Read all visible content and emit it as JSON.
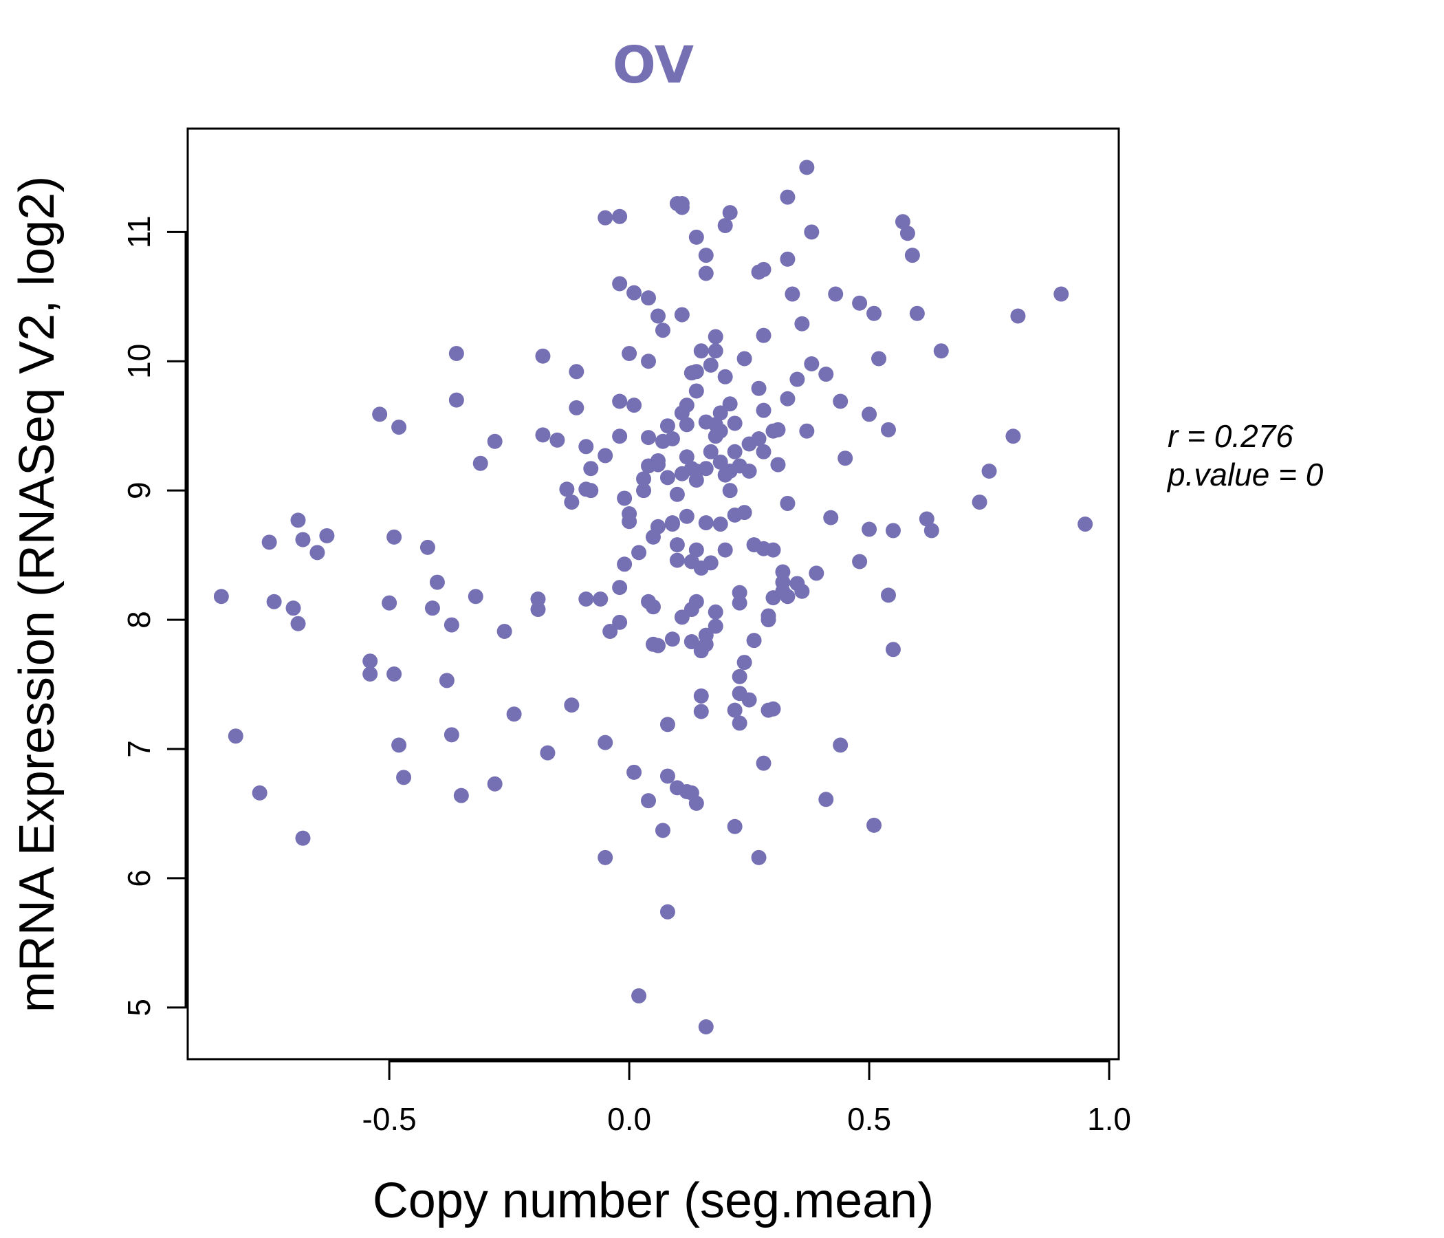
{
  "chart_data": {
    "type": "scatter",
    "title": "OV",
    "xlabel": "Copy number (seg.mean)",
    "ylabel": "mRNA Expression (RNASeq V2, log2)",
    "xlim": [
      -0.92,
      1.02
    ],
    "ylim": [
      4.6,
      11.8
    ],
    "x_ticks": [
      -0.5,
      0.0,
      0.5,
      1.0
    ],
    "x_tick_labels": [
      "-0.5",
      "0.0",
      "0.5",
      "1.0"
    ],
    "y_ticks": [
      5,
      6,
      7,
      8,
      9,
      10,
      11
    ],
    "y_tick_labels": [
      "5",
      "6",
      "7",
      "8",
      "9",
      "10",
      "11"
    ],
    "grid": false,
    "annotation": {
      "r_label": "r = 0.276",
      "p_label": "p.value = 0"
    },
    "colors": {
      "points": "#7570b3",
      "title": "#7570b3",
      "axis": "#000000"
    },
    "series": [
      {
        "name": "OV",
        "points": [
          [
            -0.85,
            8.18
          ],
          [
            -0.82,
            7.1
          ],
          [
            -0.77,
            6.66
          ],
          [
            -0.75,
            8.6
          ],
          [
            -0.74,
            8.14
          ],
          [
            -0.7,
            8.09
          ],
          [
            -0.69,
            7.97
          ],
          [
            -0.69,
            8.77
          ],
          [
            -0.68,
            8.62
          ],
          [
            -0.68,
            6.31
          ],
          [
            -0.65,
            8.52
          ],
          [
            -0.63,
            8.65
          ],
          [
            -0.54,
            7.68
          ],
          [
            -0.54,
            7.58
          ],
          [
            -0.52,
            9.59
          ],
          [
            -0.5,
            8.13
          ],
          [
            -0.49,
            7.58
          ],
          [
            -0.49,
            8.64
          ],
          [
            -0.48,
            9.49
          ],
          [
            -0.48,
            7.03
          ],
          [
            -0.47,
            6.78
          ],
          [
            -0.42,
            8.56
          ],
          [
            -0.41,
            8.09
          ],
          [
            -0.4,
            8.29
          ],
          [
            -0.38,
            7.53
          ],
          [
            -0.37,
            7.96
          ],
          [
            -0.37,
            7.11
          ],
          [
            -0.36,
            10.06
          ],
          [
            -0.36,
            9.7
          ],
          [
            -0.35,
            6.64
          ],
          [
            -0.32,
            8.18
          ],
          [
            -0.31,
            9.21
          ],
          [
            -0.28,
            9.38
          ],
          [
            -0.28,
            6.73
          ],
          [
            -0.26,
            7.91
          ],
          [
            -0.24,
            7.27
          ],
          [
            -0.19,
            8.16
          ],
          [
            -0.19,
            8.08
          ],
          [
            -0.18,
            9.43
          ],
          [
            -0.18,
            10.04
          ],
          [
            -0.17,
            6.97
          ],
          [
            -0.15,
            9.39
          ],
          [
            -0.13,
            9.01
          ],
          [
            -0.12,
            8.91
          ],
          [
            -0.12,
            7.34
          ],
          [
            -0.11,
            9.92
          ],
          [
            -0.11,
            9.64
          ],
          [
            -0.09,
            9.34
          ],
          [
            -0.09,
            9.01
          ],
          [
            -0.09,
            8.16
          ],
          [
            -0.08,
            9.0
          ],
          [
            -0.08,
            9.17
          ],
          [
            -0.06,
            8.16
          ],
          [
            -0.05,
            11.11
          ],
          [
            -0.05,
            7.05
          ],
          [
            -0.05,
            6.16
          ],
          [
            -0.05,
            9.27
          ],
          [
            -0.04,
            7.91
          ],
          [
            -0.02,
            11.12
          ],
          [
            -0.02,
            8.25
          ],
          [
            -0.02,
            9.69
          ],
          [
            -0.02,
            9.42
          ],
          [
            -0.02,
            10.6
          ],
          [
            -0.02,
            7.98
          ],
          [
            -0.01,
            8.94
          ],
          [
            -0.01,
            8.43
          ],
          [
            0.0,
            8.76
          ],
          [
            0.0,
            8.82
          ],
          [
            0.0,
            10.06
          ],
          [
            0.01,
            9.66
          ],
          [
            0.01,
            10.53
          ],
          [
            0.01,
            6.82
          ],
          [
            0.02,
            8.52
          ],
          [
            0.02,
            5.09
          ],
          [
            0.03,
            9.09
          ],
          [
            0.03,
            9.0
          ],
          [
            0.04,
            9.19
          ],
          [
            0.04,
            10.0
          ],
          [
            0.04,
            8.14
          ],
          [
            0.04,
            6.6
          ],
          [
            0.04,
            10.49
          ],
          [
            0.04,
            9.41
          ],
          [
            0.05,
            8.1
          ],
          [
            0.05,
            8.64
          ],
          [
            0.05,
            7.81
          ],
          [
            0.06,
            8.72
          ],
          [
            0.06,
            9.23
          ],
          [
            0.06,
            10.35
          ],
          [
            0.06,
            9.2
          ],
          [
            0.06,
            7.8
          ],
          [
            0.07,
            10.24
          ],
          [
            0.07,
            6.37
          ],
          [
            0.07,
            9.38
          ],
          [
            0.08,
            7.19
          ],
          [
            0.08,
            9.1
          ],
          [
            0.08,
            9.5
          ],
          [
            0.08,
            6.79
          ],
          [
            0.08,
            5.74
          ],
          [
            0.09,
            8.75
          ],
          [
            0.09,
            8.74
          ],
          [
            0.09,
            7.85
          ],
          [
            0.09,
            9.4
          ],
          [
            0.1,
            8.97
          ],
          [
            0.1,
            8.58
          ],
          [
            0.1,
            8.46
          ],
          [
            0.1,
            6.7
          ],
          [
            0.1,
            11.22
          ],
          [
            0.11,
            11.22
          ],
          [
            0.11,
            11.19
          ],
          [
            0.11,
            10.36
          ],
          [
            0.11,
            9.6
          ],
          [
            0.11,
            8.02
          ],
          [
            0.11,
            9.13
          ],
          [
            0.12,
            9.51
          ],
          [
            0.12,
            9.26
          ],
          [
            0.12,
            9.66
          ],
          [
            0.12,
            8.8
          ],
          [
            0.12,
            6.67
          ],
          [
            0.13,
            7.83
          ],
          [
            0.13,
            9.91
          ],
          [
            0.13,
            9.17
          ],
          [
            0.13,
            8.45
          ],
          [
            0.13,
            8.08
          ],
          [
            0.13,
            6.66
          ],
          [
            0.14,
            10.96
          ],
          [
            0.14,
            9.92
          ],
          [
            0.14,
            8.54
          ],
          [
            0.14,
            9.15
          ],
          [
            0.14,
            6.58
          ],
          [
            0.14,
            9.08
          ],
          [
            0.14,
            8.14
          ],
          [
            0.14,
            9.77
          ],
          [
            0.15,
            10.08
          ],
          [
            0.15,
            7.41
          ],
          [
            0.15,
            7.29
          ],
          [
            0.15,
            8.4
          ],
          [
            0.15,
            7.76
          ],
          [
            0.16,
            7.88
          ],
          [
            0.16,
            9.53
          ],
          [
            0.16,
            10.82
          ],
          [
            0.16,
            10.68
          ],
          [
            0.16,
            8.75
          ],
          [
            0.16,
            7.81
          ],
          [
            0.16,
            4.85
          ],
          [
            0.16,
            9.17
          ],
          [
            0.17,
            9.3
          ],
          [
            0.17,
            8.44
          ],
          [
            0.17,
            9.97
          ],
          [
            0.18,
            10.08
          ],
          [
            0.18,
            9.42
          ],
          [
            0.18,
            8.06
          ],
          [
            0.18,
            7.95
          ],
          [
            0.18,
            10.19
          ],
          [
            0.18,
            9.51
          ],
          [
            0.19,
            9.46
          ],
          [
            0.19,
            9.6
          ],
          [
            0.19,
            8.74
          ],
          [
            0.19,
            9.22
          ],
          [
            0.2,
            8.54
          ],
          [
            0.2,
            9.88
          ],
          [
            0.2,
            11.05
          ],
          [
            0.2,
            9.12
          ],
          [
            0.21,
            9.15
          ],
          [
            0.21,
            9.67
          ],
          [
            0.21,
            9.0
          ],
          [
            0.21,
            11.15
          ],
          [
            0.22,
            9.3
          ],
          [
            0.22,
            6.4
          ],
          [
            0.22,
            7.3
          ],
          [
            0.22,
            9.52
          ],
          [
            0.22,
            8.81
          ],
          [
            0.23,
            8.13
          ],
          [
            0.23,
            8.21
          ],
          [
            0.23,
            7.43
          ],
          [
            0.23,
            7.56
          ],
          [
            0.23,
            9.19
          ],
          [
            0.23,
            7.2
          ],
          [
            0.24,
            8.83
          ],
          [
            0.24,
            10.02
          ],
          [
            0.24,
            7.67
          ],
          [
            0.25,
            9.15
          ],
          [
            0.25,
            7.38
          ],
          [
            0.25,
            9.36
          ],
          [
            0.26,
            8.58
          ],
          [
            0.26,
            7.84
          ],
          [
            0.27,
            10.69
          ],
          [
            0.27,
            9.79
          ],
          [
            0.27,
            6.16
          ],
          [
            0.27,
            9.4
          ],
          [
            0.28,
            8.55
          ],
          [
            0.28,
            9.3
          ],
          [
            0.28,
            9.62
          ],
          [
            0.28,
            10.2
          ],
          [
            0.28,
            10.71
          ],
          [
            0.28,
            6.89
          ],
          [
            0.29,
            8.03
          ],
          [
            0.29,
            8.0
          ],
          [
            0.29,
            7.3
          ],
          [
            0.3,
            9.46
          ],
          [
            0.3,
            8.54
          ],
          [
            0.3,
            7.31
          ],
          [
            0.3,
            8.17
          ],
          [
            0.31,
            9.47
          ],
          [
            0.31,
            9.2
          ],
          [
            0.32,
            8.29
          ],
          [
            0.32,
            8.37
          ],
          [
            0.32,
            8.22
          ],
          [
            0.33,
            8.18
          ],
          [
            0.33,
            8.9
          ],
          [
            0.33,
            9.71
          ],
          [
            0.33,
            10.79
          ],
          [
            0.33,
            11.27
          ],
          [
            0.34,
            10.52
          ],
          [
            0.35,
            9.86
          ],
          [
            0.35,
            8.28
          ],
          [
            0.36,
            8.22
          ],
          [
            0.36,
            10.29
          ],
          [
            0.37,
            9.46
          ],
          [
            0.37,
            11.5
          ],
          [
            0.38,
            9.98
          ],
          [
            0.38,
            11.0
          ],
          [
            0.39,
            8.36
          ],
          [
            0.41,
            6.61
          ],
          [
            0.41,
            9.9
          ],
          [
            0.42,
            8.79
          ],
          [
            0.43,
            10.52
          ],
          [
            0.44,
            9.69
          ],
          [
            0.44,
            7.03
          ],
          [
            0.45,
            9.25
          ],
          [
            0.48,
            8.45
          ],
          [
            0.48,
            10.45
          ],
          [
            0.5,
            9.59
          ],
          [
            0.5,
            8.7
          ],
          [
            0.51,
            6.41
          ],
          [
            0.51,
            10.37
          ],
          [
            0.52,
            10.02
          ],
          [
            0.54,
            9.47
          ],
          [
            0.54,
            8.19
          ],
          [
            0.55,
            8.69
          ],
          [
            0.55,
            7.77
          ],
          [
            0.57,
            11.08
          ],
          [
            0.58,
            10.99
          ],
          [
            0.59,
            10.82
          ],
          [
            0.6,
            10.37
          ],
          [
            0.62,
            8.78
          ],
          [
            0.63,
            8.69
          ],
          [
            0.65,
            10.08
          ],
          [
            0.73,
            8.91
          ],
          [
            0.75,
            9.15
          ],
          [
            0.8,
            9.42
          ],
          [
            0.81,
            10.35
          ],
          [
            0.9,
            10.52
          ],
          [
            0.95,
            8.74
          ]
        ]
      }
    ]
  }
}
